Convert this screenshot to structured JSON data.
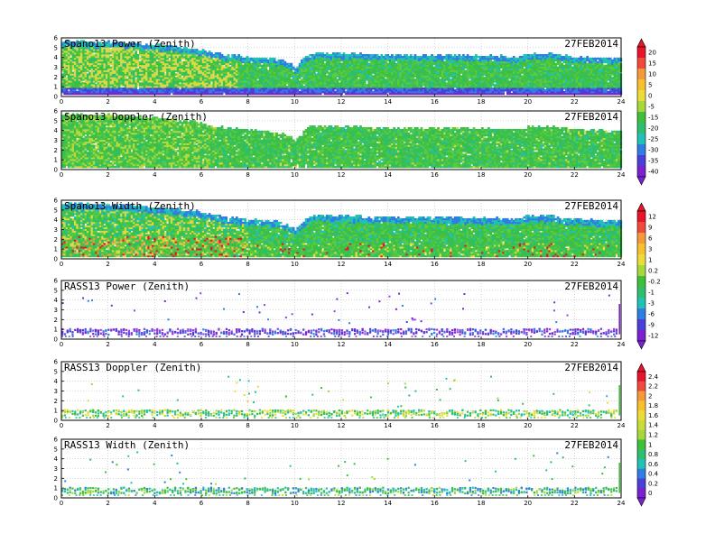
{
  "chart_data": {
    "type": "heatmap",
    "time_axis": {
      "range": [
        0,
        24
      ],
      "ticks": [
        "0",
        "2",
        "4",
        "6",
        "8",
        "10",
        "12",
        "14",
        "16",
        "18",
        "20",
        "22",
        "24"
      ]
    },
    "height_axis": {
      "range": [
        0,
        6
      ],
      "ticks": [
        "0",
        "1",
        "2",
        "3",
        "4",
        "5",
        "6"
      ]
    },
    "date": "27FEB2014",
    "panels": [
      {
        "title": "Spano13 Power (Zenith)",
        "kind": "profiler",
        "field": "power"
      },
      {
        "title": "Spano13 Doppler (Zenith)",
        "kind": "profiler",
        "field": "doppler"
      },
      {
        "title": "Spano13 Width (Zenith)",
        "kind": "profiler",
        "field": "width"
      },
      {
        "title": "RASS13 Power (Zenith)",
        "kind": "rass",
        "field": "power"
      },
      {
        "title": "RASS13 Doppler (Zenith)",
        "kind": "rass",
        "field": "doppler"
      },
      {
        "title": "RASS13 Width (Zenith)",
        "kind": "rass",
        "field": "width"
      }
    ],
    "profiler_top_km": [
      [
        0,
        5.6
      ],
      [
        1,
        5.5
      ],
      [
        2,
        5.5
      ],
      [
        3,
        5.4
      ],
      [
        4,
        5.2
      ],
      [
        5,
        5.0
      ],
      [
        6,
        4.7
      ],
      [
        6.5,
        4.4
      ],
      [
        7,
        4.2
      ],
      [
        8,
        4.0
      ],
      [
        9,
        3.8
      ],
      [
        9.5,
        3.6
      ],
      [
        10,
        2.9
      ],
      [
        10.5,
        4.2
      ],
      [
        11,
        4.4
      ],
      [
        12,
        4.3
      ],
      [
        14,
        4.2
      ],
      [
        16,
        4.2
      ],
      [
        18,
        4.1
      ],
      [
        19.5,
        4.0
      ],
      [
        20,
        4.3
      ],
      [
        21,
        4.3
      ],
      [
        22,
        4.0
      ],
      [
        24,
        3.8
      ]
    ],
    "colorbars": [
      {
        "labels": [
          "20",
          "15",
          "10",
          "5",
          "0",
          "-5",
          "-15",
          "-20",
          "-25",
          "-30",
          "-35",
          "-40"
        ],
        "colors": [
          "#e8152a",
          "#f04a3c",
          "#f49a3a",
          "#f6c02f",
          "#ecdc3a",
          "#a6d83b",
          "#3fc03a",
          "#2dbf6e",
          "#22c1b5",
          "#2f7ee0",
          "#4a3fd8",
          "#7a22d0"
        ]
      },
      {
        "labels": [
          "12",
          "9",
          "6",
          "3",
          "1",
          "0.2",
          "-0.2",
          "-1",
          "-3",
          "-6",
          "-9",
          "-12"
        ],
        "colors": [
          "#e8152a",
          "#f04a3c",
          "#f49a3a",
          "#f6c02f",
          "#ecdc3a",
          "#a6d83b",
          "#3fc03a",
          "#2dbf6e",
          "#22c1b5",
          "#2f7ee0",
          "#4a3fd8",
          "#7a22d0"
        ]
      },
      {
        "labels": [
          "2.4",
          "2.2",
          "2",
          "1.8",
          "1.6",
          "1.4",
          "1.2",
          "1",
          "0.8",
          "0.6",
          "0.4",
          "0.2",
          "0"
        ],
        "colors": [
          "#e8152a",
          "#f04a3c",
          "#f49a3a",
          "#f6c02f",
          "#ecdc3a",
          "#c9dc3a",
          "#a6d83b",
          "#3fc03a",
          "#2dbf6e",
          "#22c1b5",
          "#2f7ee0",
          "#4a3fd8",
          "#7a22d0"
        ]
      }
    ]
  }
}
